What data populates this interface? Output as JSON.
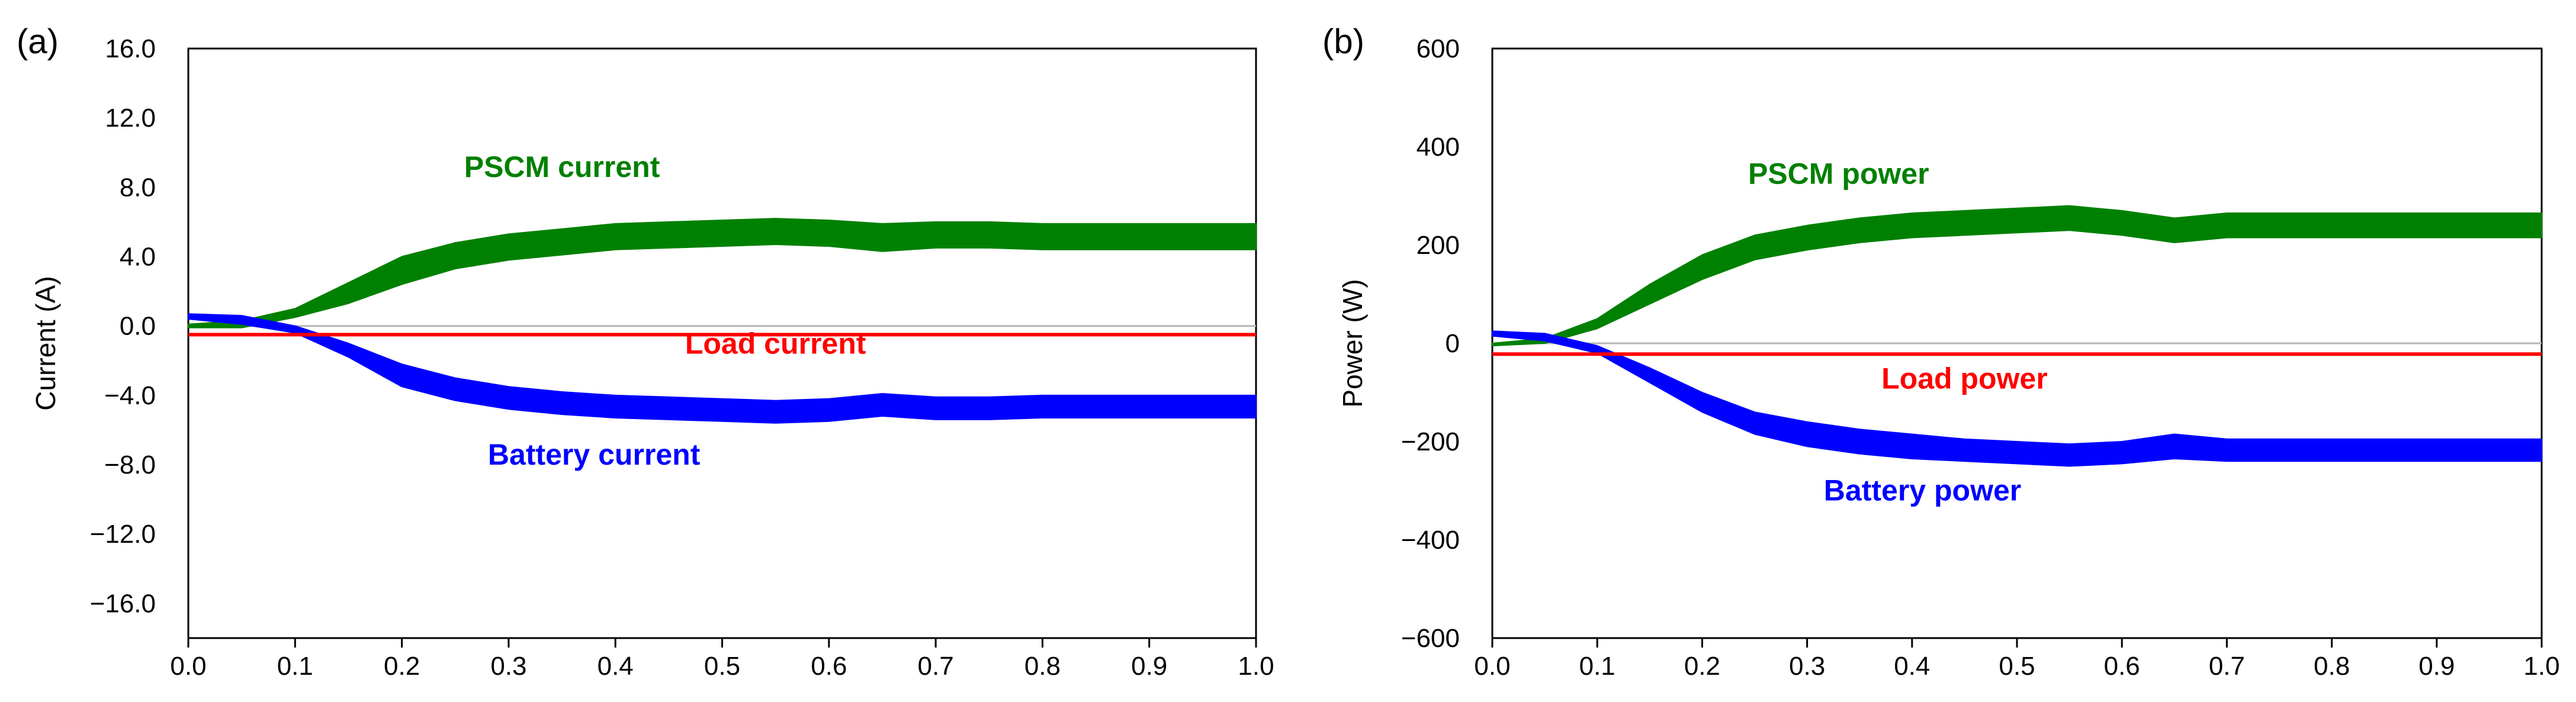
{
  "chart_data": [
    {
      "type": "line",
      "panel_label": "(a)",
      "title": "",
      "xlabel": "",
      "ylabel": "Current (A)",
      "xlim": [
        0.0,
        1.0
      ],
      "ylim": [
        -18.0,
        16.0
      ],
      "grid": false,
      "x_ticks": [
        0.0,
        0.1,
        0.2,
        0.3,
        0.4,
        0.5,
        0.6,
        0.7,
        0.8,
        0.9,
        1.0
      ],
      "x_tick_labels": [
        "0.0",
        "0.1",
        "0.2",
        "0.3",
        "0.4",
        "0.5",
        "0.6",
        "0.7",
        "0.8",
        "0.9",
        "1.0"
      ],
      "y_ticks": [
        16,
        12,
        8,
        4,
        0,
        -4,
        -8,
        -12,
        -16
      ],
      "y_tick_labels": [
        "16.0",
        "12.0",
        "8.0",
        "4.0",
        "0.0",
        "−4.0",
        "−8.0",
        "−12.0",
        "−16.0"
      ],
      "series": [
        {
          "name": "PSCM current",
          "color": "#008000",
          "band": true,
          "x": [
            0.0,
            0.05,
            0.1,
            0.15,
            0.2,
            0.25,
            0.3,
            0.35,
            0.4,
            0.45,
            0.5,
            0.55,
            0.6,
            0.65,
            0.7,
            0.75,
            0.8,
            0.85,
            0.9,
            0.95,
            1.0
          ],
          "upper": [
            0.1,
            0.3,
            1.0,
            2.5,
            4.0,
            4.8,
            5.3,
            5.6,
            5.9,
            6.0,
            6.1,
            6.2,
            6.1,
            5.9,
            6.0,
            6.0,
            5.9,
            5.9,
            5.9,
            5.9,
            5.9
          ],
          "lower": [
            -0.1,
            -0.1,
            0.5,
            1.3,
            2.4,
            3.3,
            3.8,
            4.1,
            4.4,
            4.5,
            4.6,
            4.7,
            4.6,
            4.3,
            4.5,
            4.5,
            4.4,
            4.4,
            4.4,
            4.4,
            4.4
          ]
        },
        {
          "name": "Battery current",
          "color": "#0000ff",
          "band": true,
          "x": [
            0.0,
            0.05,
            0.1,
            0.15,
            0.2,
            0.25,
            0.3,
            0.35,
            0.4,
            0.45,
            0.5,
            0.55,
            0.6,
            0.65,
            0.7,
            0.75,
            0.8,
            0.85,
            0.9,
            0.95,
            1.0
          ],
          "upper": [
            0.7,
            0.6,
            0.0,
            -1.0,
            -2.2,
            -3.0,
            -3.5,
            -3.8,
            -4.0,
            -4.1,
            -4.2,
            -4.3,
            -4.2,
            -3.9,
            -4.1,
            -4.1,
            -4.0,
            -4.0,
            -4.0,
            -4.0,
            -4.0
          ],
          "lower": [
            0.4,
            0.1,
            -0.4,
            -1.8,
            -3.5,
            -4.3,
            -4.8,
            -5.1,
            -5.3,
            -5.4,
            -5.5,
            -5.6,
            -5.5,
            -5.2,
            -5.4,
            -5.4,
            -5.3,
            -5.3,
            -5.3,
            -5.3,
            -5.3
          ]
        },
        {
          "name": "Load current",
          "color": "#ff0000",
          "band": false,
          "x": [
            0.0,
            1.0
          ],
          "y": [
            -0.5,
            -0.5
          ]
        }
      ],
      "annotations": [
        {
          "text": "PSCM current",
          "color": "#008000",
          "x": 0.35,
          "y": 8.6
        },
        {
          "text": "Load current",
          "color": "#ff0000",
          "x": 0.55,
          "y": -1.6
        },
        {
          "text": "Battery current",
          "color": "#0000ff",
          "x": 0.38,
          "y": -8.0
        }
      ]
    },
    {
      "type": "line",
      "panel_label": "(b)",
      "title": "",
      "xlabel": "",
      "ylabel": "Power (W)",
      "xlim": [
        0.0,
        1.0
      ],
      "ylim": [
        -600,
        600
      ],
      "grid": false,
      "x_ticks": [
        0.0,
        0.1,
        0.2,
        0.3,
        0.4,
        0.5,
        0.6,
        0.7,
        0.8,
        0.9,
        1.0
      ],
      "x_tick_labels": [
        "0.0",
        "0.1",
        "0.2",
        "0.3",
        "0.4",
        "0.5",
        "0.6",
        "0.7",
        "0.8",
        "0.9",
        "1.0"
      ],
      "y_ticks": [
        600,
        400,
        200,
        0,
        -200,
        -400,
        -600
      ],
      "y_tick_labels": [
        "600",
        "400",
        "200",
        "0",
        "−200",
        "−400",
        "−600"
      ],
      "series": [
        {
          "name": "PSCM power",
          "color": "#008000",
          "band": true,
          "x": [
            0.0,
            0.05,
            0.1,
            0.15,
            0.2,
            0.25,
            0.3,
            0.35,
            0.4,
            0.45,
            0.5,
            0.55,
            0.6,
            0.65,
            0.7,
            0.75,
            0.8,
            0.85,
            0.9,
            0.95,
            1.0
          ],
          "upper": [
            0,
            10,
            50,
            120,
            180,
            220,
            240,
            255,
            265,
            270,
            275,
            280,
            270,
            255,
            265,
            265,
            265,
            265,
            265,
            265,
            265
          ],
          "lower": [
            -5,
            0,
            30,
            80,
            130,
            170,
            190,
            205,
            215,
            220,
            225,
            230,
            220,
            205,
            215,
            215,
            215,
            215,
            215,
            215,
            215
          ]
        },
        {
          "name": "Battery power",
          "color": "#0000ff",
          "band": true,
          "x": [
            0.0,
            0.05,
            0.1,
            0.15,
            0.2,
            0.25,
            0.3,
            0.35,
            0.4,
            0.45,
            0.5,
            0.55,
            0.6,
            0.65,
            0.7,
            0.75,
            0.8,
            0.85,
            0.9,
            0.95,
            1.0
          ],
          "upper": [
            25,
            20,
            -5,
            -50,
            -100,
            -140,
            -160,
            -175,
            -185,
            -195,
            -200,
            -205,
            -200,
            -185,
            -195,
            -195,
            -195,
            -195,
            -195,
            -195,
            -195
          ],
          "lower": [
            15,
            5,
            -20,
            -80,
            -140,
            -185,
            -210,
            -225,
            -235,
            -240,
            -245,
            -250,
            -245,
            -235,
            -240,
            -240,
            -240,
            -240,
            -240,
            -240,
            -240
          ]
        },
        {
          "name": "Load power",
          "color": "#ff0000",
          "band": false,
          "x": [
            0.0,
            1.0
          ],
          "y": [
            -22,
            -22
          ]
        }
      ],
      "annotations": [
        {
          "text": "PSCM power",
          "color": "#008000",
          "x": 0.33,
          "y": 325
        },
        {
          "text": "Load power",
          "color": "#ff0000",
          "x": 0.45,
          "y": -92
        },
        {
          "text": "Battery power",
          "color": "#0000ff",
          "x": 0.41,
          "y": -320
        }
      ]
    }
  ]
}
